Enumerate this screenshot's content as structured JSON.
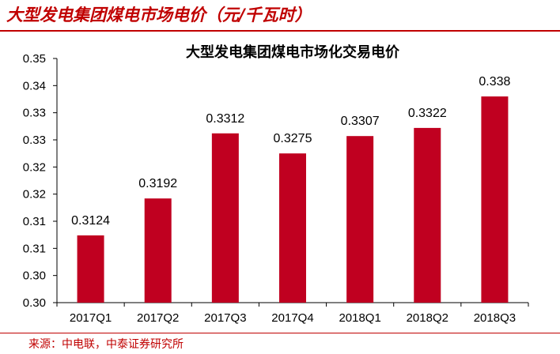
{
  "header": {
    "title": "大型发电集团煤电市场电价（元/千瓦时）"
  },
  "footer": {
    "source": "来源：中电联，中泰证券研究所"
  },
  "colors": {
    "accent": "#c00000",
    "bar": "#c00020"
  },
  "chart_data": {
    "type": "bar",
    "title": "大型发电集团煤电市场化交易电价",
    "xlabel": "",
    "ylabel": "",
    "categories": [
      "2017Q1",
      "2017Q2",
      "2017Q3",
      "2017Q4",
      "2018Q1",
      "2018Q2",
      "2018Q3"
    ],
    "values": [
      0.3124,
      0.3192,
      0.3312,
      0.3275,
      0.3307,
      0.3322,
      0.338
    ],
    "value_labels": [
      "0.3124",
      "0.3192",
      "0.3312",
      "0.3275",
      "0.3307",
      "0.3322",
      "0.338"
    ],
    "ylim": [
      0.3,
      0.345
    ],
    "yticks": [
      0.3,
      0.305,
      0.31,
      0.315,
      0.32,
      0.325,
      0.33,
      0.335,
      0.34,
      0.345
    ],
    "ytick_labels": [
      "0.30",
      "0.30",
      "0.31",
      "0.31",
      "0.32",
      "0.32",
      "0.33",
      "0.33",
      "0.34",
      "0.35"
    ],
    "grid": false,
    "legend": "none"
  }
}
